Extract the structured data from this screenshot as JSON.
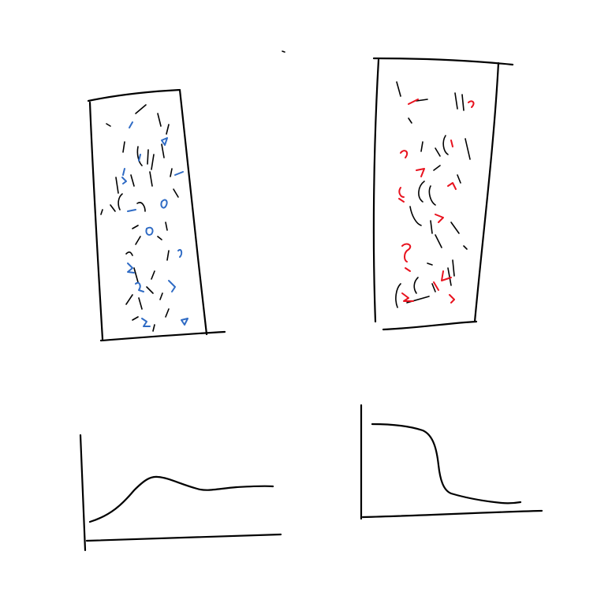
{
  "canvas": {
    "background": "#ffffff",
    "ink_color": "#000000"
  },
  "containers": [
    {
      "id": "left-container",
      "particle_color": "#2f6bc4",
      "description_color_role": "blue"
    },
    {
      "id": "right-container",
      "particle_color": "#e8121e",
      "description_color_role": "red"
    }
  ],
  "graphs": [
    {
      "id": "left-graph",
      "curve_shape": "rise-then-plateau"
    },
    {
      "id": "right-graph",
      "curve_shape": "high-then-drop"
    }
  ]
}
